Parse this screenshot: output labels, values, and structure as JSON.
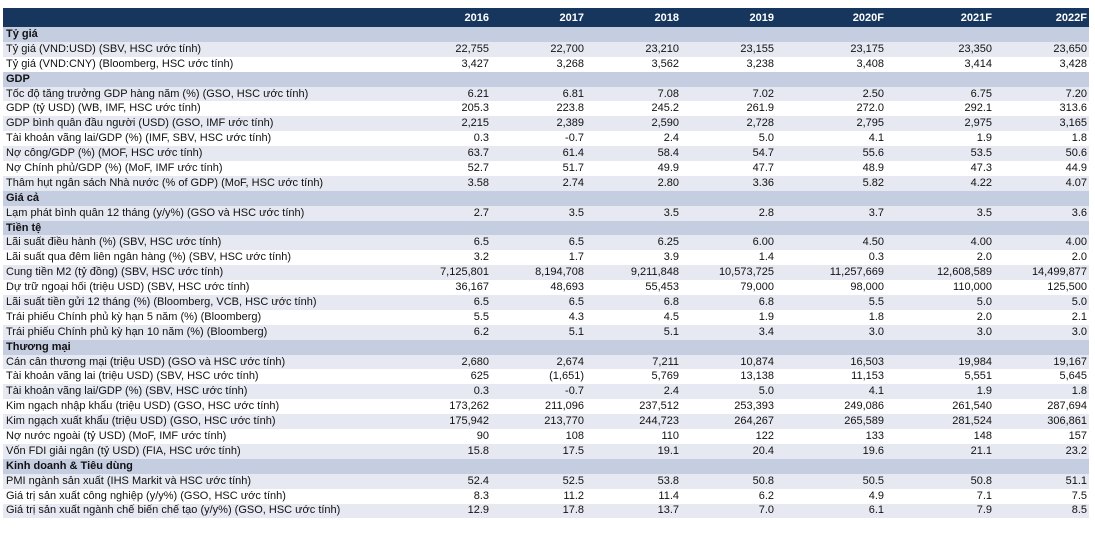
{
  "header": {
    "years": [
      "2016",
      "2017",
      "2018",
      "2019",
      "2020F",
      "2021F",
      "2022F"
    ]
  },
  "sections": [
    {
      "title": "Tỷ giá",
      "rows": [
        {
          "label": "Tỷ giá (VND:USD) (SBV, HSC ước tính)",
          "values": [
            "22,755",
            "22,700",
            "23,210",
            "23,155",
            "23,175",
            "23,350",
            "23,650"
          ]
        },
        {
          "label": "Tỷ giá (VND:CNY) (Bloomberg, HSC ước tính)",
          "values": [
            "3,427",
            "3,268",
            "3,562",
            "3,238",
            "3,408",
            "3,414",
            "3,428"
          ]
        }
      ]
    },
    {
      "title": "GDP",
      "rows": [
        {
          "label": "Tốc độ tăng trưởng GDP hàng năm (%) (GSO, HSC ước tính)",
          "values": [
            "6.21",
            "6.81",
            "7.08",
            "7.02",
            "2.50",
            "6.75",
            "7.20"
          ]
        },
        {
          "label": "GDP (tỷ USD) (WB, IMF, HSC ước tính)",
          "values": [
            "205.3",
            "223.8",
            "245.2",
            "261.9",
            "272.0",
            "292.1",
            "313.6"
          ]
        },
        {
          "label": "GDP bình quân đầu người (USD) (GSO, IMF ước tính)",
          "values": [
            "2,215",
            "2,389",
            "2,590",
            "2,728",
            "2,795",
            "2,975",
            "3,165"
          ]
        },
        {
          "label": "Tài khoản vãng lai/GDP (%) (IMF, SBV, HSC ước tính)",
          "values": [
            "0.3",
            "-0.7",
            "2.4",
            "5.0",
            "4.1",
            "1.9",
            "1.8"
          ]
        },
        {
          "label": "Nợ công/GDP (%) (MOF, HSC ước tính)",
          "values": [
            "63.7",
            "61.4",
            "58.4",
            "54.7",
            "55.6",
            "53.5",
            "50.6"
          ]
        },
        {
          "label": "Nợ Chính phủ/GDP (%) (MoF, IMF ước tính)",
          "values": [
            "52.7",
            "51.7",
            "49.9",
            "47.7",
            "48.9",
            "47.3",
            "44.9"
          ]
        },
        {
          "label": "Thâm hụt ngân sách Nhà nước (% of GDP) (MoF, HSC ước tính)",
          "values": [
            "3.58",
            "2.74",
            "2.80",
            "3.36",
            "5.82",
            "4.22",
            "4.07"
          ]
        }
      ]
    },
    {
      "title": "Giá cả",
      "rows": [
        {
          "label": "Lạm phát bình quân 12 tháng (y/y%) (GSO và HSC ước tính)",
          "values": [
            "2.7",
            "3.5",
            "3.5",
            "2.8",
            "3.7",
            "3.5",
            "3.6"
          ]
        }
      ]
    },
    {
      "title": "Tiền tệ",
      "rows": [
        {
          "label": "Lãi suất điều hành (%) (SBV, HSC ước tính)",
          "values": [
            "6.5",
            "6.5",
            "6.25",
            "6.00",
            "4.50",
            "4.00",
            "4.00"
          ]
        },
        {
          "label": "Lãi suất qua đêm liên ngân hàng (%) (SBV, HSC ước tính)",
          "values": [
            "3.2",
            "1.7",
            "3.9",
            "1.4",
            "0.3",
            "2.0",
            "2.0"
          ]
        },
        {
          "label": "Cung tiền M2 (tỷ đồng) (SBV, HSC ước tính)",
          "values": [
            "7,125,801",
            "8,194,708",
            "9,211,848",
            "10,573,725",
            "11,257,669",
            "12,608,589",
            "14,499,877"
          ]
        },
        {
          "label": "Dự trữ ngoại hối (triệu USD) (SBV, HSC ước tính)",
          "values": [
            "36,167",
            "48,693",
            "55,453",
            "79,000",
            "98,000",
            "110,000",
            "125,500"
          ]
        },
        {
          "label": "Lãi suất tiền gửi 12 tháng (%) (Bloomberg, VCB, HSC ước tính)",
          "values": [
            "6.5",
            "6.5",
            "6.8",
            "6.8",
            "5.5",
            "5.0",
            "5.0"
          ]
        },
        {
          "label": "Trái phiếu Chính phủ kỳ hạn 5 năm (%) (Bloomberg)",
          "values": [
            "5.5",
            "4.3",
            "4.5",
            "1.9",
            "1.8",
            "2.0",
            "2.1"
          ]
        },
        {
          "label": "Trái phiếu Chính phủ kỳ hạn 10 năm (%) (Bloomberg)",
          "values": [
            "6.2",
            "5.1",
            "5.1",
            "3.4",
            "3.0",
            "3.0",
            "3.0"
          ]
        }
      ]
    },
    {
      "title": "Thương mại",
      "rows": [
        {
          "label": "Cán cân thương mại (triệu USD) (GSO và HSC ước tính)",
          "values": [
            "2,680",
            "2,674",
            "7,211",
            "10,874",
            "16,503",
            "19,984",
            "19,167"
          ]
        },
        {
          "label": "Tài khoản vãng lai (triệu USD) (SBV, HSC ước tính)",
          "values": [
            "625",
            "(1,651)",
            "5,769",
            "13,138",
            "11,153",
            "5,551",
            "5,645"
          ]
        },
        {
          "label": "Tài khoản vãng lai/GDP (%) (SBV, HSC ước tính)",
          "values": [
            "0.3",
            "-0.7",
            "2.4",
            "5.0",
            "4.1",
            "1.9",
            "1.8"
          ]
        },
        {
          "label": "Kim ngạch nhập khẩu (triệu USD) (GSO, HSC ước tính)",
          "values": [
            "173,262",
            "211,096",
            "237,512",
            "253,393",
            "249,086",
            "261,540",
            "287,694"
          ]
        },
        {
          "label": "Kim ngạch xuất khẩu (triệu USD) (GSO, HSC ước tính)",
          "values": [
            "175,942",
            "213,770",
            "244,723",
            "264,267",
            "265,589",
            "281,524",
            "306,861"
          ]
        },
        {
          "label": "Nợ nước ngoài (tỷ USD) (MoF, IMF ước tính)",
          "values": [
            "90",
            "108",
            "110",
            "122",
            "133",
            "148",
            "157"
          ]
        },
        {
          "label": "Vốn FDI giải ngân (tỷ USD) (FIA, HSC ước tính)",
          "values": [
            "15.8",
            "17.5",
            "19.1",
            "20.4",
            "19.6",
            "21.1",
            "23.2"
          ]
        }
      ]
    },
    {
      "title": "Kinh doanh & Tiêu dùng",
      "rows": [
        {
          "label": "PMI ngành sản xuất (IHS Markit và HSC ước tính)",
          "values": [
            "52.4",
            "52.5",
            "53.8",
            "50.8",
            "50.5",
            "50.8",
            "51.1"
          ]
        },
        {
          "label": "Giá trị sản xuất công nghiệp (y/y%) (GSO, HSC ước tính)",
          "values": [
            "8.3",
            "11.2",
            "11.4",
            "6.2",
            "4.9",
            "7.1",
            "7.5"
          ]
        },
        {
          "label": "Giá trị sản xuất ngành chế biến chế tạo (y/y%) (GSO, HSC ước tính)",
          "values": [
            "12.9",
            "17.8",
            "13.7",
            "7.0",
            "6.1",
            "7.9",
            "8.5"
          ]
        }
      ]
    }
  ]
}
